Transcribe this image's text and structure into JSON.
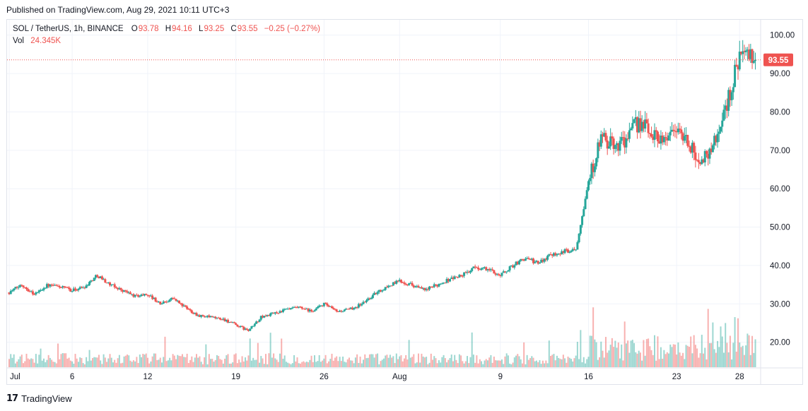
{
  "header": {
    "published_text": "Published on TradingView.com, Aug 29, 2021 10:11 UTC+3"
  },
  "legend": {
    "symbol": "SOL / TetherUS, 1h, BINANCE",
    "o_label": "O",
    "o_value": "93.78",
    "h_label": "H",
    "h_value": "94.16",
    "l_label": "L",
    "l_value": "93.25",
    "c_label": "C",
    "c_value": "93.55",
    "change": "−0.25 (−0.27%)",
    "vol_label": "Vol",
    "vol_value": "24.345K"
  },
  "price_badge": "93.55",
  "footer": {
    "logo_text": "TradingView"
  },
  "colors": {
    "up": "#26a69a",
    "down": "#ef5350",
    "grid": "#f0f3fa",
    "badge": "#ef5350"
  },
  "chart_data": {
    "type": "candlestick",
    "interval": "1h",
    "symbol": "SOL / TetherUS",
    "exchange": "BINANCE",
    "y_ticks": [
      "100.00",
      "90.00",
      "80.00",
      "70.00",
      "60.00",
      "50.00",
      "40.00",
      "30.00",
      "20.00"
    ],
    "ylim": [
      13.5,
      104
    ],
    "x_ticks": [
      "Jul",
      "6",
      "12",
      "19",
      "26",
      "Aug",
      "9",
      "16",
      "23",
      "28"
    ],
    "x_tick_dates": [
      "2021-07-01",
      "2021-07-06",
      "2021-07-12",
      "2021-07-19",
      "2021-07-26",
      "2021-08-01",
      "2021-08-09",
      "2021-08-16",
      "2021-08-23",
      "2021-08-28"
    ],
    "last_price": 93.55,
    "grid": true,
    "approx_close_path": [
      [
        "2021-07-01",
        33.0
      ],
      [
        "2021-07-02",
        35.0
      ],
      [
        "2021-07-03",
        32.5
      ],
      [
        "2021-07-04",
        34.8
      ],
      [
        "2021-07-05",
        34.5
      ],
      [
        "2021-07-06",
        33.5
      ],
      [
        "2021-07-07",
        34.5
      ],
      [
        "2021-07-08",
        37.5
      ],
      [
        "2021-07-09",
        35.0
      ],
      [
        "2021-07-10",
        33.5
      ],
      [
        "2021-07-11",
        32.0
      ],
      [
        "2021-07-12",
        32.5
      ],
      [
        "2021-07-13",
        30.0
      ],
      [
        "2021-07-14",
        31.5
      ],
      [
        "2021-07-15",
        29.0
      ],
      [
        "2021-07-16",
        27.0
      ],
      [
        "2021-07-17",
        26.5
      ],
      [
        "2021-07-18",
        26.0
      ],
      [
        "2021-07-19",
        24.5
      ],
      [
        "2021-07-20",
        23.0
      ],
      [
        "2021-07-21",
        26.5
      ],
      [
        "2021-07-22",
        27.5
      ],
      [
        "2021-07-23",
        28.5
      ],
      [
        "2021-07-24",
        29.0
      ],
      [
        "2021-07-25",
        28.0
      ],
      [
        "2021-07-26",
        30.0
      ],
      [
        "2021-07-27",
        28.0
      ],
      [
        "2021-07-28",
        28.5
      ],
      [
        "2021-07-29",
        30.0
      ],
      [
        "2021-07-30",
        32.5
      ],
      [
        "2021-07-31",
        34.5
      ],
      [
        "2021-08-01",
        36.0
      ],
      [
        "2021-08-02",
        35.0
      ],
      [
        "2021-08-03",
        33.5
      ],
      [
        "2021-08-04",
        35.0
      ],
      [
        "2021-08-05",
        36.5
      ],
      [
        "2021-08-06",
        37.5
      ],
      [
        "2021-08-07",
        39.5
      ],
      [
        "2021-08-08",
        39.0
      ],
      [
        "2021-08-09",
        37.5
      ],
      [
        "2021-08-10",
        40.0
      ],
      [
        "2021-08-11",
        42.0
      ],
      [
        "2021-08-12",
        40.5
      ],
      [
        "2021-08-13",
        43.0
      ],
      [
        "2021-08-14",
        43.5
      ],
      [
        "2021-08-15",
        44.5
      ],
      [
        "2021-08-16",
        62.0
      ],
      [
        "2021-08-17",
        73.0
      ],
      [
        "2021-08-18",
        71.0
      ],
      [
        "2021-08-19",
        73.0
      ],
      [
        "2021-08-20",
        77.5
      ],
      [
        "2021-08-21",
        74.5
      ],
      [
        "2021-08-22",
        73.0
      ],
      [
        "2021-08-23",
        76.0
      ],
      [
        "2021-08-24",
        71.0
      ],
      [
        "2021-08-25",
        67.0
      ],
      [
        "2021-08-26",
        72.0
      ],
      [
        "2021-08-27",
        82.0
      ],
      [
        "2021-08-28",
        95.0
      ],
      [
        "2021-08-29",
        93.55
      ]
    ]
  }
}
